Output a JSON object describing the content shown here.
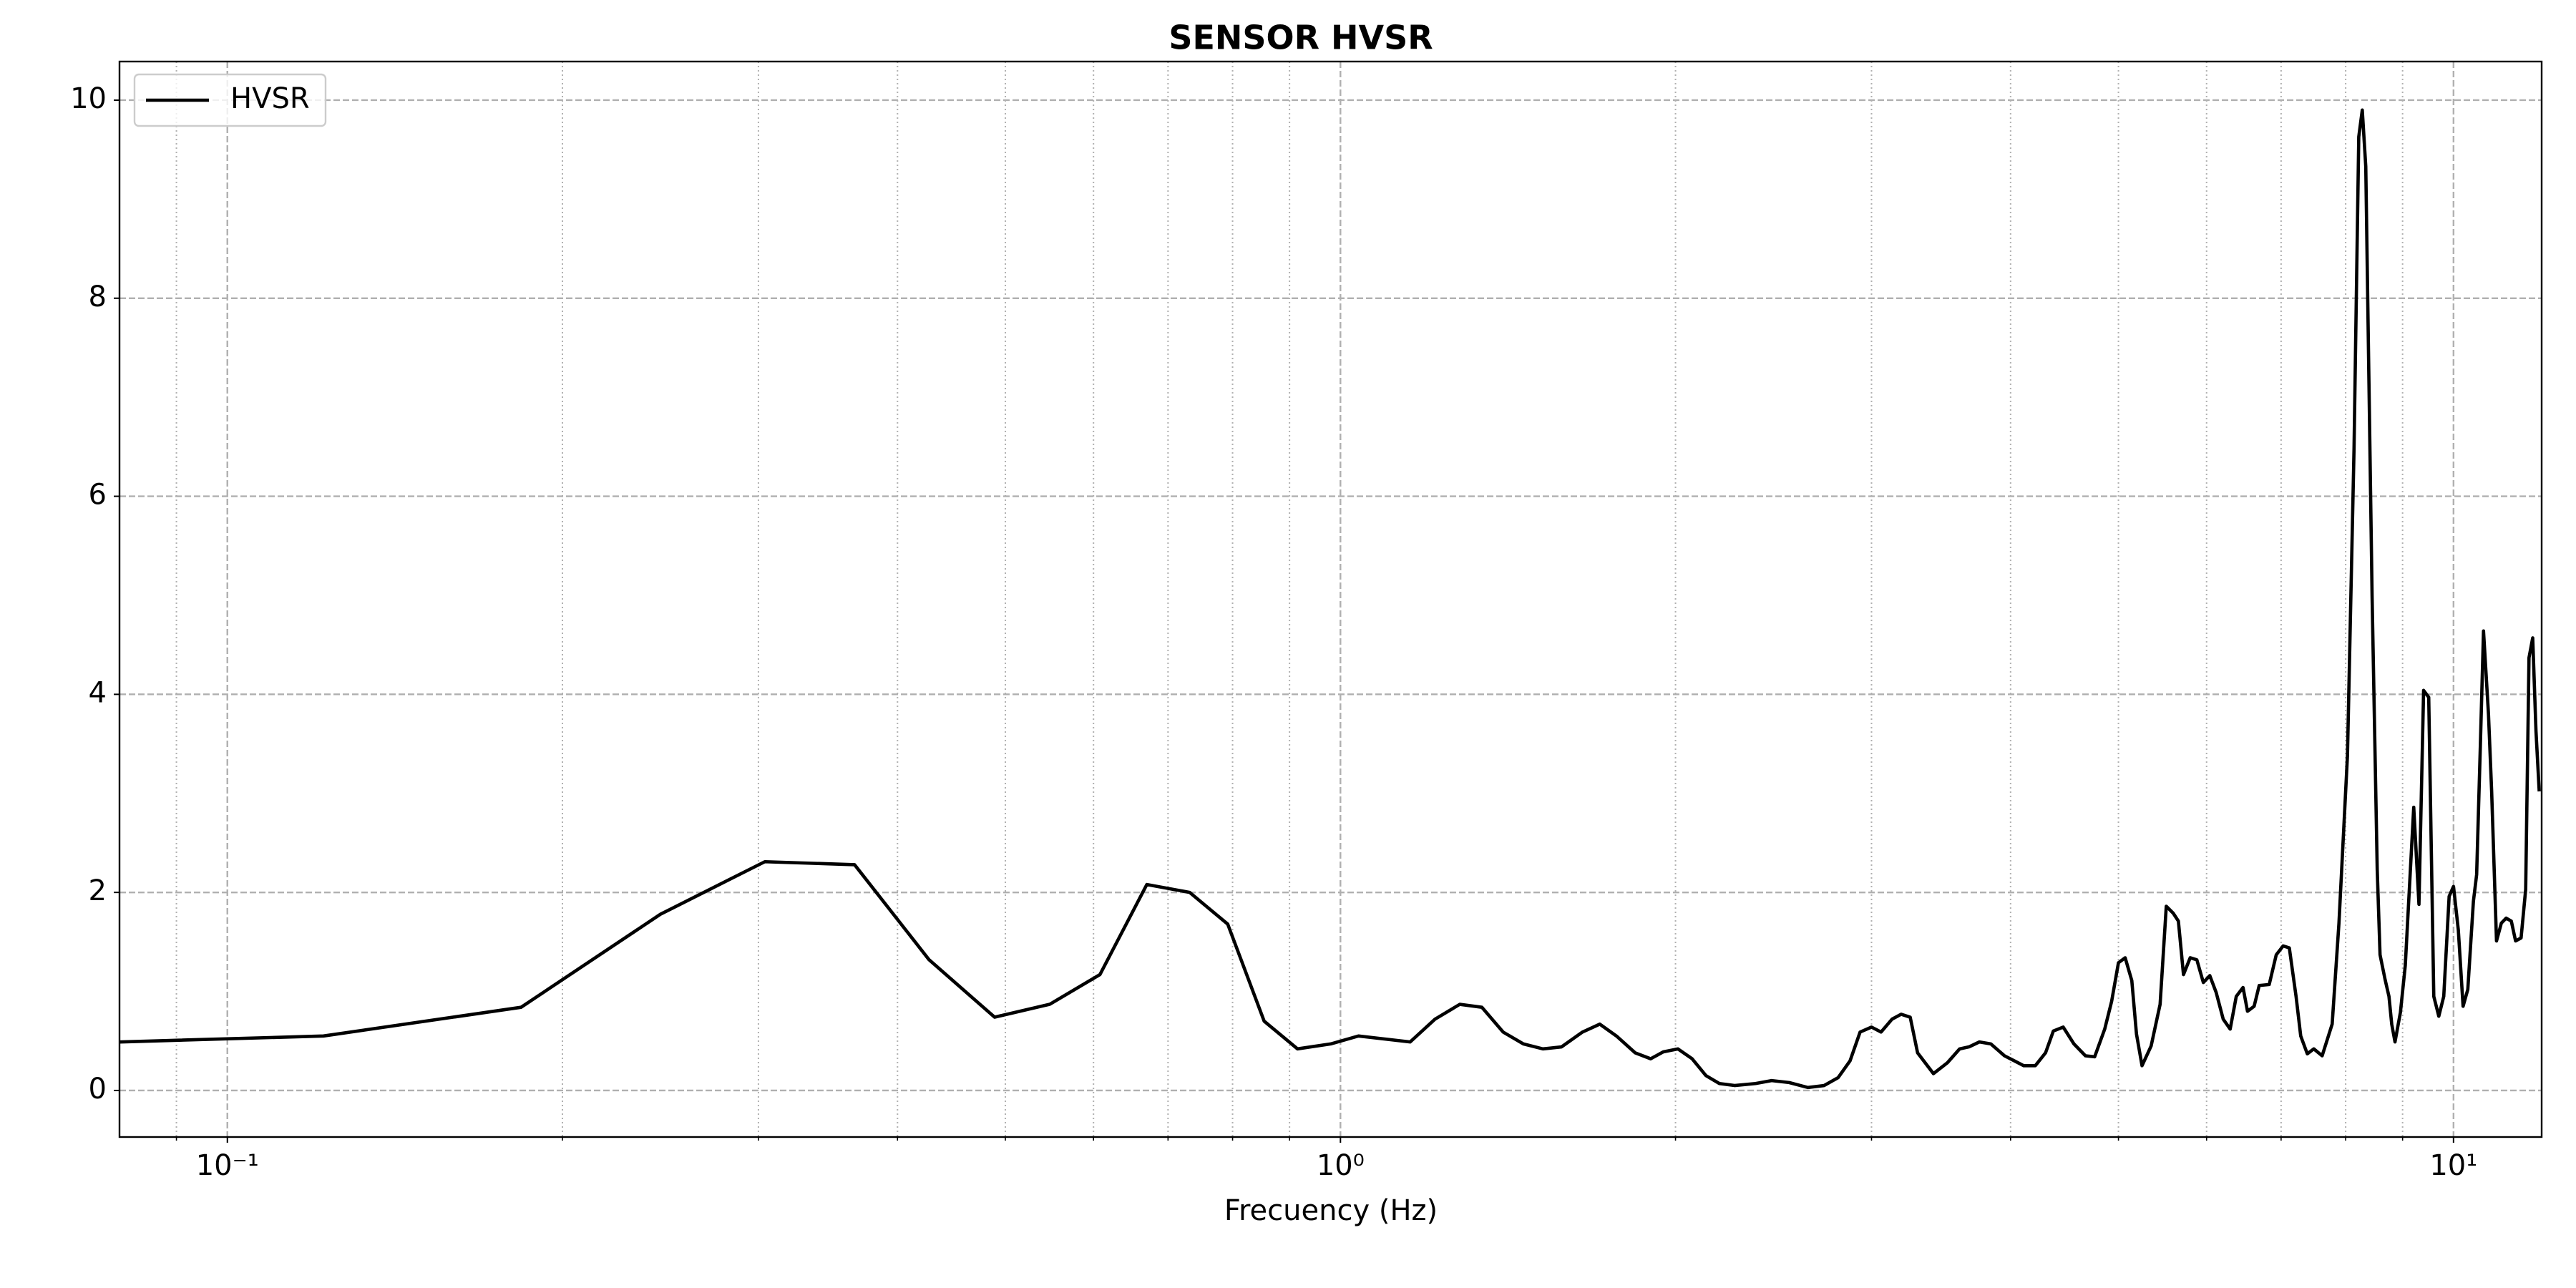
{
  "chart_data": {
    "type": "line",
    "title": "SENSOR HVSR",
    "xlabel": "Frecuency (Hz)",
    "xscale": "log",
    "grid": true,
    "legend": "upper left",
    "xlim": [
      0.08,
      12
    ],
    "ylim": [
      -0.47,
      10.39
    ],
    "xticks": [
      {
        "value": 0.1,
        "label": "10⁻¹"
      },
      {
        "value": 1,
        "label": "10⁰"
      },
      {
        "value": 10,
        "label": "10¹"
      }
    ],
    "xminorticks": [
      0.09,
      0.2,
      0.3,
      0.4,
      0.5,
      0.6,
      0.7,
      0.8,
      0.9,
      2,
      3,
      4,
      5,
      6,
      7,
      8,
      9
    ],
    "yticks": [
      0,
      2,
      4,
      6,
      8,
      10
    ],
    "x": [
      0.08,
      0.122,
      0.1836,
      0.245,
      0.304,
      0.366,
      0.427,
      0.489,
      0.548,
      0.608,
      0.67,
      0.732,
      0.792,
      0.854,
      0.915,
      0.98,
      1.038,
      1.155,
      1.216,
      1.28,
      1.34,
      1.4,
      1.46,
      1.52,
      1.58,
      1.65,
      1.71,
      1.77,
      1.84,
      1.9,
      1.95,
      2.01,
      2.07,
      2.13,
      2.19,
      2.26,
      2.36,
      2.44,
      2.53,
      2.63,
      2.72,
      2.8,
      2.87,
      2.93,
      3.0,
      3.06,
      3.13,
      3.19,
      3.25,
      3.3,
      3.41,
      3.51,
      3.6,
      3.67,
      3.75,
      3.84,
      3.95,
      4.03,
      4.11,
      4.21,
      4.3,
      4.37,
      4.46,
      4.56,
      4.67,
      4.76,
      4.86,
      4.93,
      5.0,
      5.07,
      5.14,
      5.19,
      5.25,
      5.35,
      5.45,
      5.52,
      5.6,
      5.66,
      5.72,
      5.8,
      5.88,
      5.96,
      6.04,
      6.12,
      6.21,
      6.3,
      6.38,
      6.47,
      6.53,
      6.62,
      6.69,
      6.83,
      6.93,
      7.03,
      7.12,
      7.22,
      7.29,
      7.39,
      7.49,
      7.62,
      7.78,
      7.89,
      8.03,
      8.14,
      8.22,
      8.28,
      8.34,
      8.45,
      8.54,
      8.59,
      8.68,
      8.75,
      8.8,
      8.86,
      8.96,
      9.05,
      9.21,
      9.31,
      9.4,
      9.5,
      9.6,
      9.7,
      9.8,
      9.91,
      10.0,
      10.1,
      10.2,
      10.3,
      10.42,
      10.49,
      10.57,
      10.64,
      10.75,
      10.82,
      10.93,
      11.04,
      11.15,
      11.27,
      11.37,
      11.5,
      11.61,
      11.69,
      11.78,
      11.86,
      11.94
    ],
    "series": [
      {
        "name": "HVSR",
        "color": "#000000",
        "values": [
          0.49,
          0.55,
          0.84,
          1.78,
          2.31,
          2.28,
          1.32,
          0.74,
          0.87,
          1.17,
          2.08,
          2.0,
          1.68,
          0.7,
          0.42,
          0.47,
          0.55,
          0.49,
          0.72,
          0.87,
          0.84,
          0.59,
          0.47,
          0.42,
          0.44,
          0.59,
          0.67,
          0.55,
          0.38,
          0.32,
          0.39,
          0.42,
          0.32,
          0.15,
          0.07,
          0.05,
          0.07,
          0.1,
          0.08,
          0.03,
          0.05,
          0.13,
          0.3,
          0.59,
          0.64,
          0.59,
          0.72,
          0.77,
          0.74,
          0.38,
          0.17,
          0.28,
          0.42,
          0.44,
          0.49,
          0.47,
          0.35,
          0.3,
          0.25,
          0.25,
          0.38,
          0.6,
          0.64,
          0.47,
          0.35,
          0.34,
          0.62,
          0.9,
          1.29,
          1.34,
          1.11,
          0.57,
          0.25,
          0.45,
          0.87,
          1.86,
          1.79,
          1.71,
          1.17,
          1.34,
          1.32,
          1.09,
          1.16,
          0.99,
          0.72,
          0.62,
          0.95,
          1.04,
          0.8,
          0.85,
          1.06,
          1.07,
          1.37,
          1.46,
          1.44,
          0.95,
          0.55,
          0.37,
          0.42,
          0.35,
          0.67,
          1.69,
          3.38,
          6.48,
          9.63,
          9.9,
          9.33,
          4.99,
          2.23,
          1.37,
          1.12,
          0.95,
          0.67,
          0.49,
          0.79,
          1.26,
          2.86,
          1.88,
          4.04,
          3.97,
          0.95,
          0.75,
          0.95,
          1.96,
          2.06,
          1.62,
          0.85,
          1.02,
          1.91,
          2.18,
          3.47,
          4.64,
          3.8,
          3.03,
          1.51,
          1.69,
          1.74,
          1.71,
          1.51,
          1.54,
          2.03,
          4.37,
          4.57,
          3.63,
          3.02
        ]
      }
    ]
  }
}
